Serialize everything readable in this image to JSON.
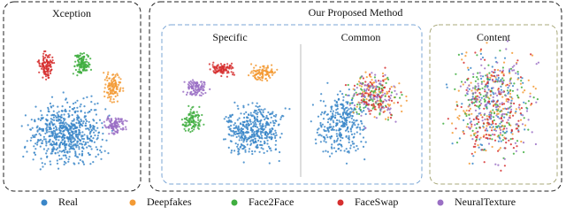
{
  "figure": {
    "left_panel": {
      "title": "Xception"
    },
    "group": {
      "title": "Our Proposed Method",
      "subpanels": [
        {
          "title": "Specific"
        },
        {
          "title": "Common"
        },
        {
          "title": "Content"
        }
      ]
    },
    "legend": [
      {
        "name": "Real",
        "color": "#3a86c8"
      },
      {
        "name": "Deepfakes",
        "color": "#f39a34"
      },
      {
        "name": "Face2Face",
        "color": "#3fae3f"
      },
      {
        "name": "FaceSwap",
        "color": "#d62f2f"
      },
      {
        "name": "NeuralTexture",
        "color": "#9a6fc4"
      }
    ]
  }
}
